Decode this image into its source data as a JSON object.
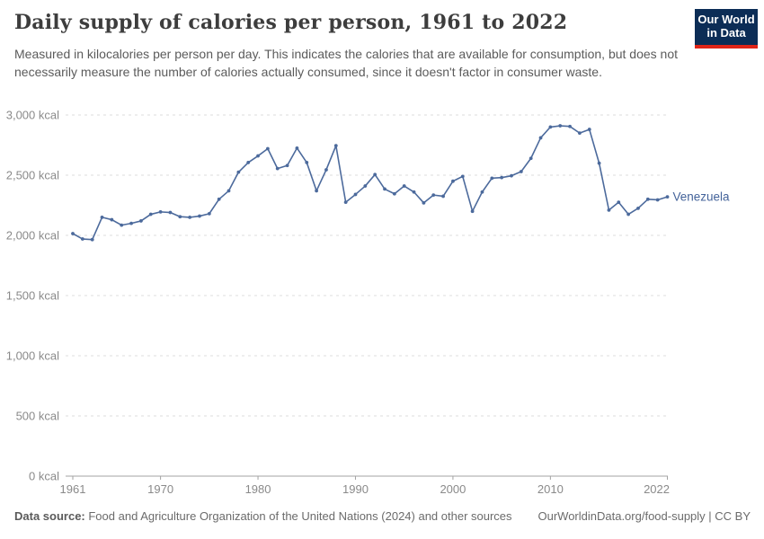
{
  "header": {
    "title": "Daily supply of calories per person, 1961 to 2022",
    "subtitle": "Measured in kilocalories per person per day. This indicates the calories that are available for consumption, but does not necessarily measure the number of calories actually consumed, since it doesn't factor in consumer waste.",
    "logo": {
      "line1": "Our World",
      "line2": "in Data",
      "bg_color": "#0C2D56",
      "accent_color": "#E02417"
    }
  },
  "chart_data": {
    "type": "line",
    "title": "Daily supply of calories per person, 1961 to 2022",
    "entity_label": "Venezuela",
    "unit": "kcal",
    "xlim": [
      1961,
      2022
    ],
    "ylim": [
      0,
      3000
    ],
    "x_ticks": [
      1961,
      1970,
      1980,
      1990,
      2000,
      2010,
      2022
    ],
    "y_ticks": [
      0,
      500,
      1000,
      1500,
      2000,
      2500,
      3000
    ],
    "y_tick_suffix": " kcal",
    "grid": "horizontal-dashed",
    "legend_position": "end-of-line-label",
    "series": [
      {
        "name": "Venezuela",
        "color": "#4C6A9C",
        "label_color": "#44639A",
        "years": [
          1961,
          1962,
          1963,
          1964,
          1965,
          1966,
          1967,
          1968,
          1969,
          1970,
          1971,
          1972,
          1973,
          1974,
          1975,
          1976,
          1977,
          1978,
          1979,
          1980,
          1981,
          1982,
          1983,
          1984,
          1985,
          1986,
          1987,
          1988,
          1989,
          1990,
          1991,
          1992,
          1993,
          1994,
          1995,
          1996,
          1997,
          1998,
          1999,
          2000,
          2001,
          2002,
          2003,
          2004,
          2005,
          2006,
          2007,
          2008,
          2009,
          2010,
          2011,
          2012,
          2013,
          2014,
          2015,
          2016,
          2017,
          2018,
          2019,
          2020,
          2021,
          2022
        ],
        "values": [
          2015,
          1970,
          1965,
          2150,
          2130,
          2085,
          2100,
          2120,
          2175,
          2195,
          2190,
          2155,
          2150,
          2160,
          2180,
          2300,
          2370,
          2525,
          2605,
          2660,
          2720,
          2555,
          2580,
          2725,
          2605,
          2370,
          2545,
          2745,
          2275,
          2340,
          2410,
          2505,
          2385,
          2345,
          2410,
          2360,
          2270,
          2335,
          2325,
          2450,
          2490,
          2200,
          2360,
          2475,
          2480,
          2495,
          2530,
          2640,
          2810,
          2900,
          2910,
          2905,
          2850,
          2880,
          2600,
          2210,
          2275,
          2175,
          2225,
          2300,
          2295,
          2320
        ]
      }
    ]
  },
  "footer": {
    "source_label": "Data source:",
    "source_text": " Food and Agriculture Organization of the United Nations (2024) and other sources",
    "link_text": "OurWorldinData.org/food-supply | CC BY"
  }
}
